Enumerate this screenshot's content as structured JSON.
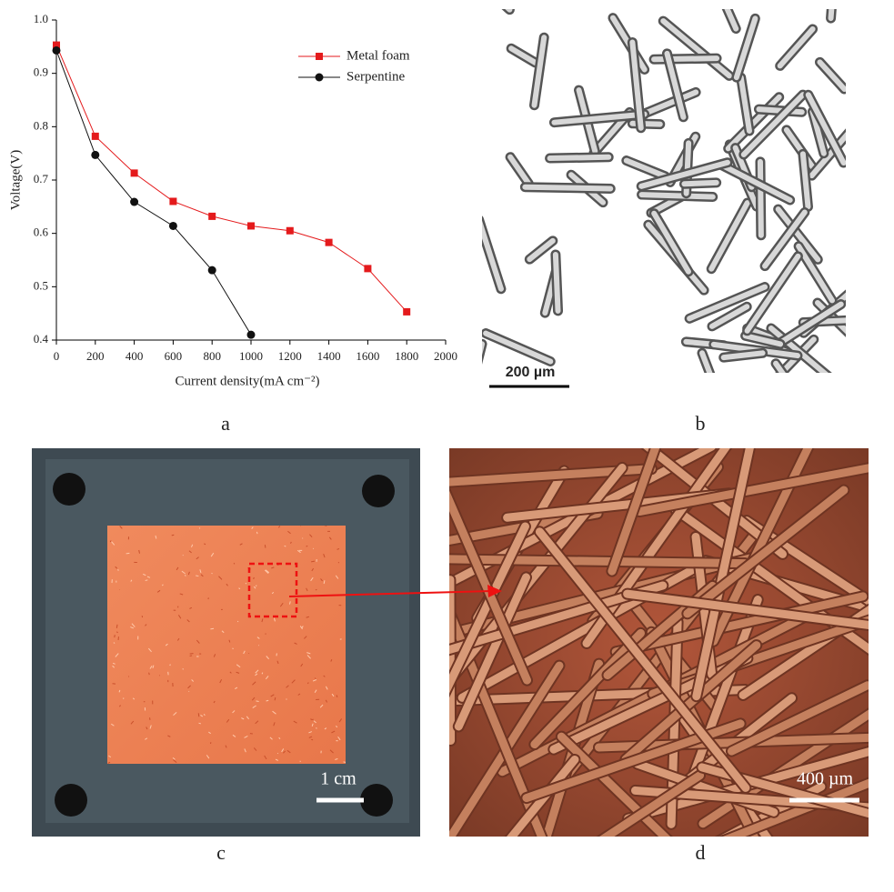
{
  "chart_data": {
    "type": "line",
    "xlabel": "Current density(mA cm⁻²)",
    "ylabel": "Voltage(V)",
    "series": [
      {
        "name": "Metal foam",
        "color": "#e41a1c",
        "marker": "square",
        "x": [
          0,
          200,
          400,
          600,
          800,
          1000,
          1200,
          1400,
          1600,
          1800
        ],
        "values": [
          0.953,
          0.782,
          0.713,
          0.66,
          0.632,
          0.614,
          0.605,
          0.583,
          0.534,
          0.453
        ]
      },
      {
        "name": "Serpentine",
        "color": "#111111",
        "marker": "circle",
        "x": [
          0,
          200,
          400,
          600,
          800,
          1000
        ],
        "values": [
          0.943,
          0.747,
          0.659,
          0.614,
          0.531,
          0.41
        ]
      }
    ],
    "xlim": [
      0,
      2000
    ],
    "xticks": [
      0,
      200,
      400,
      600,
      800,
      1000,
      1200,
      1400,
      1600,
      1800,
      2000
    ],
    "ylim": [
      0.4,
      1.0
    ],
    "yticks": [
      0.4,
      0.5,
      0.6,
      0.7,
      0.8,
      0.9,
      {
        "value": 1.0,
        "label": "1.0"
      }
    ],
    "legend": "upper right",
    "grid": false
  },
  "panels": {
    "a": {
      "label": "a"
    },
    "b": {
      "label": "b",
      "scale_bar": "200 µm"
    },
    "c": {
      "label": "c",
      "scale_bar": "1 cm"
    },
    "d": {
      "label": "d",
      "scale_bar": "400 µm"
    }
  }
}
